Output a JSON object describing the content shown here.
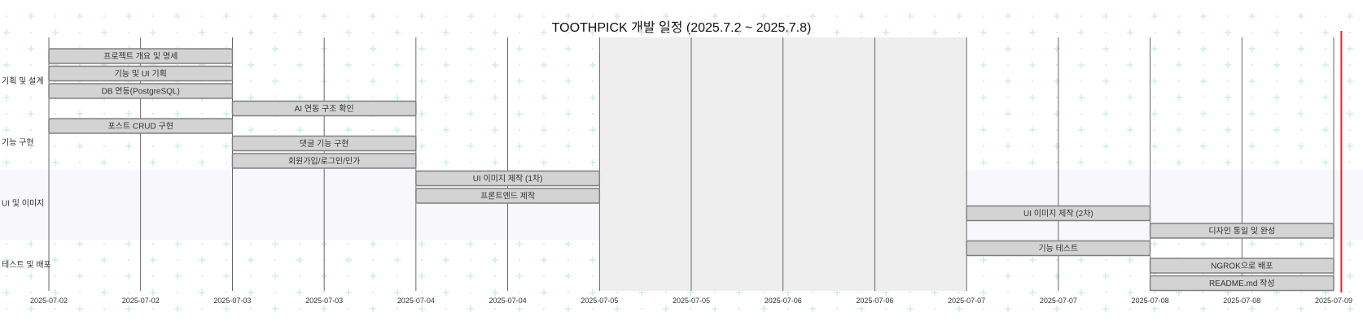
{
  "chart_data": {
    "type": "gantt",
    "title": "TOOTHPICK 개발 일정 (2025.7.2 ~ 2025.7.8)",
    "x_axis": {
      "start": "2025-07-02T00:00",
      "end": "2025-07-09T00:00",
      "tick_labels": [
        "2025-07-02",
        "2025-07-02",
        "2025-07-03",
        "2025-07-03",
        "2025-07-04",
        "2025-07-04",
        "2025-07-05",
        "2025-07-05",
        "2025-07-06",
        "2025-07-06",
        "2025-07-07",
        "2025-07-07",
        "2025-07-08",
        "2025-07-08",
        "2025-07-09"
      ]
    },
    "excluded_ranges": [
      {
        "start": "2025-07-05T00:00",
        "end": "2025-07-07T00:00"
      }
    ],
    "today_marker": "2025-07-09T01:00",
    "sections": [
      {
        "name": "기획 및 설계",
        "tasks": [
          {
            "name": "프로젝트 개요 및 명세",
            "start": "2025-07-02T00:00",
            "end": "2025-07-03T00:00"
          },
          {
            "name": "기능 및 UI 기획",
            "start": "2025-07-02T00:00",
            "end": "2025-07-03T00:00"
          },
          {
            "name": "DB 연동(PostgreSQL)",
            "start": "2025-07-02T00:00",
            "end": "2025-07-03T00:00"
          },
          {
            "name": "AI 연동 구조 확인",
            "start": "2025-07-03T00:00",
            "end": "2025-07-04T00:00"
          }
        ]
      },
      {
        "name": "기능 구현",
        "tasks": [
          {
            "name": "포스트 CRUD 구현",
            "start": "2025-07-02T00:00",
            "end": "2025-07-03T00:00"
          },
          {
            "name": "댓글 기능 구현",
            "start": "2025-07-03T00:00",
            "end": "2025-07-04T00:00"
          },
          {
            "name": "회원가입/로그인/인가",
            "start": "2025-07-03T00:00",
            "end": "2025-07-04T00:00"
          }
        ]
      },
      {
        "name": "UI 및 이미지",
        "tasks": [
          {
            "name": "UI 이미지 제작 (1차)",
            "start": "2025-07-04T00:00",
            "end": "2025-07-05T00:00"
          },
          {
            "name": "프론트엔드 제작",
            "start": "2025-07-04T00:00",
            "end": "2025-07-05T00:00"
          },
          {
            "name": "UI 이미지 제작 (2차)",
            "start": "2025-07-07T00:00",
            "end": "2025-07-08T00:00"
          },
          {
            "name": "디자인 통일 및 완성",
            "start": "2025-07-08T00:00",
            "end": "2025-07-09T00:00"
          }
        ]
      },
      {
        "name": "테스트 및 배포",
        "tasks": [
          {
            "name": "기능 테스트",
            "start": "2025-07-07T00:00",
            "end": "2025-07-08T00:00"
          },
          {
            "name": "NGROK으로 배포",
            "start": "2025-07-08T00:00",
            "end": "2025-07-09T00:00"
          },
          {
            "name": "README.md 작성",
            "start": "2025-07-08T00:00",
            "end": "2025-07-09T00:00"
          }
        ]
      }
    ],
    "colors": {
      "task_fill": "#d3d3d3",
      "task_stroke": "#808080",
      "section_band_alt": "#f7f7fc",
      "excluded_fill": "#eeeeee",
      "grid_line": "#444444",
      "today_line": "#e8242b",
      "watermark": "#cdeee8"
    }
  }
}
